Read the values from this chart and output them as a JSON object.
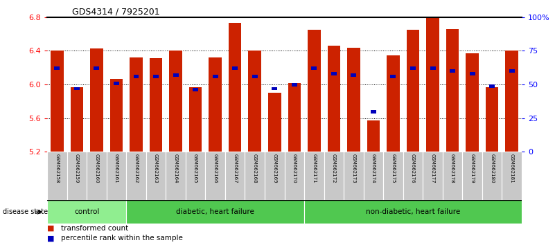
{
  "title": "GDS4314 / 7925201",
  "samples": [
    "GSM662158",
    "GSM662159",
    "GSM662160",
    "GSM662161",
    "GSM662162",
    "GSM662163",
    "GSM662164",
    "GSM662165",
    "GSM662166",
    "GSM662167",
    "GSM662168",
    "GSM662169",
    "GSM662170",
    "GSM662171",
    "GSM662172",
    "GSM662173",
    "GSM662174",
    "GSM662175",
    "GSM662176",
    "GSM662177",
    "GSM662178",
    "GSM662179",
    "GSM662180",
    "GSM662181"
  ],
  "bar_values": [
    6.4,
    5.97,
    6.43,
    6.07,
    6.32,
    6.31,
    6.4,
    5.97,
    6.32,
    6.73,
    6.4,
    5.9,
    6.02,
    6.65,
    6.46,
    6.44,
    5.57,
    6.35,
    6.65,
    6.8,
    6.66,
    6.37,
    5.97,
    6.4
  ],
  "percentile_values": [
    62,
    47,
    62,
    51,
    56,
    56,
    57,
    46,
    56,
    62,
    56,
    47,
    50,
    62,
    58,
    57,
    30,
    56,
    62,
    62,
    60,
    58,
    49,
    60
  ],
  "groups": [
    {
      "label": "control",
      "start": 0,
      "end": 3
    },
    {
      "label": "diabetic, heart failure",
      "start": 4,
      "end": 12
    },
    {
      "label": "non-diabetic, heart failure",
      "start": 13,
      "end": 23
    }
  ],
  "group_colors": [
    "#90EE90",
    "#50C850",
    "#50C850"
  ],
  "ylim_left": [
    5.2,
    6.8
  ],
  "ylim_right": [
    0,
    100
  ],
  "bar_color": "#CC2200",
  "blue_color": "#0000BB",
  "label_bg": "#C8C8C8",
  "yticks_left": [
    5.2,
    5.6,
    6.0,
    6.4,
    6.8
  ],
  "yticks_right": [
    0,
    25,
    50,
    75,
    100
  ],
  "ytick_labels_right": [
    "0",
    "25",
    "50",
    "75",
    "100%"
  ]
}
